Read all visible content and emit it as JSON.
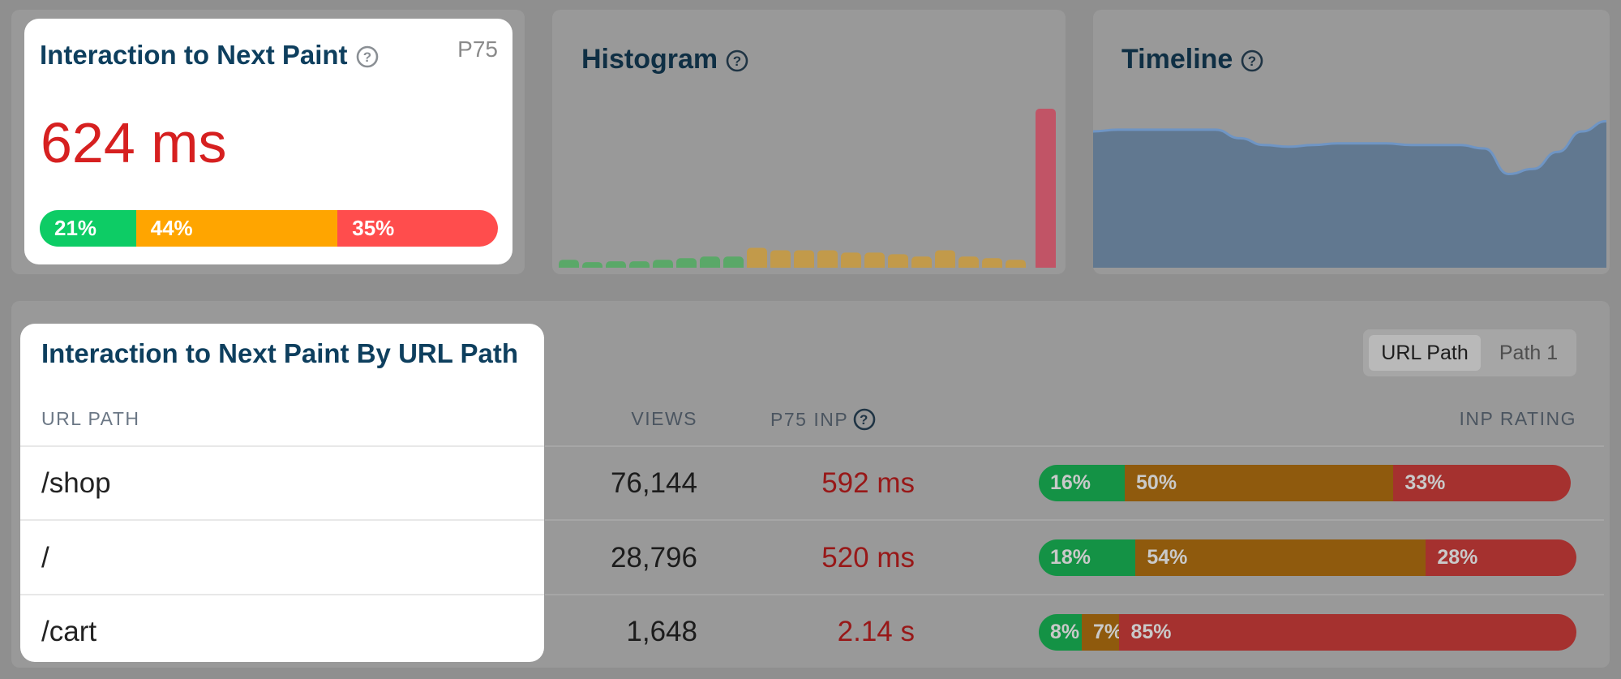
{
  "inp_card": {
    "title": "Interaction to Next Paint",
    "percentile": "P75",
    "value": "624 ms",
    "value_color": "#d62020",
    "distribution": [
      {
        "label": "21%",
        "fraction": 0.21,
        "color": "#0dcc65"
      },
      {
        "label": "44%",
        "fraction": 0.44,
        "color": "#ffa500"
      },
      {
        "label": "35%",
        "fraction": 0.35,
        "color": "#ff4d4d"
      }
    ]
  },
  "histogram": {
    "title": "Histogram",
    "bins": [
      {
        "v": 0.05,
        "rating": "good"
      },
      {
        "v": 0.035,
        "rating": "good"
      },
      {
        "v": 0.04,
        "rating": "good"
      },
      {
        "v": 0.04,
        "rating": "good"
      },
      {
        "v": 0.05,
        "rating": "good"
      },
      {
        "v": 0.06,
        "rating": "good"
      },
      {
        "v": 0.07,
        "rating": "good"
      },
      {
        "v": 0.07,
        "rating": "good"
      },
      {
        "v": 0.125,
        "rating": "needs-improvement"
      },
      {
        "v": 0.11,
        "rating": "needs-improvement"
      },
      {
        "v": 0.11,
        "rating": "needs-improvement"
      },
      {
        "v": 0.11,
        "rating": "needs-improvement"
      },
      {
        "v": 0.095,
        "rating": "needs-improvement"
      },
      {
        "v": 0.095,
        "rating": "needs-improvement"
      },
      {
        "v": 0.085,
        "rating": "needs-improvement"
      },
      {
        "v": 0.07,
        "rating": "needs-improvement"
      },
      {
        "v": 0.11,
        "rating": "needs-improvement"
      },
      {
        "v": 0.07,
        "rating": "needs-improvement"
      },
      {
        "v": 0.06,
        "rating": "needs-improvement"
      },
      {
        "v": 0.05,
        "rating": "needs-improvement"
      },
      {
        "v": 1.0,
        "rating": "poor"
      }
    ],
    "colors": {
      "good": "#5aa868",
      "needs-improvement": "#c29a4a",
      "poor": "#c15466"
    }
  },
  "timeline": {
    "title": "Timeline",
    "values": [
      0.8,
      0.81,
      0.81,
      0.81,
      0.81,
      0.81,
      0.76,
      0.72,
      0.71,
      0.72,
      0.73,
      0.73,
      0.73,
      0.72,
      0.72,
      0.72,
      0.7,
      0.55,
      0.58,
      0.68,
      0.8,
      0.86
    ],
    "color": "#617890",
    "line_color": "#6f95c4"
  },
  "by_path": {
    "title": "Interaction to Next Paint By URL Path",
    "toggle": {
      "active": "URL Path",
      "inactive": "Path 1"
    },
    "columns": {
      "path": "URL PATH",
      "views": "VIEWS",
      "inp": "P75 INP",
      "rating": "INP RATING"
    },
    "rows": [
      {
        "path": "/shop",
        "views": "76,144",
        "inp": "592 ms",
        "rating": [
          {
            "label": "16%",
            "fraction": 0.16
          },
          {
            "label": "50%",
            "fraction": 0.5
          },
          {
            "label": "33%",
            "fraction": 0.33
          }
        ]
      },
      {
        "path": "/",
        "views": "28,796",
        "inp": "520 ms",
        "rating": [
          {
            "label": "18%",
            "fraction": 0.18
          },
          {
            "label": "54%",
            "fraction": 0.54
          },
          {
            "label": "28%",
            "fraction": 0.28
          }
        ]
      },
      {
        "path": "/cart",
        "views": "1,648",
        "inp": "2.14 s",
        "rating": [
          {
            "label": "8%",
            "fraction": 0.08
          },
          {
            "label": "7%",
            "fraction": 0.07
          },
          {
            "label": "85%",
            "fraction": 0.85
          }
        ]
      }
    ],
    "rating_colors": [
      "#149245",
      "#8f5a0d",
      "#a5312f"
    ],
    "inp_color": "#981818"
  }
}
